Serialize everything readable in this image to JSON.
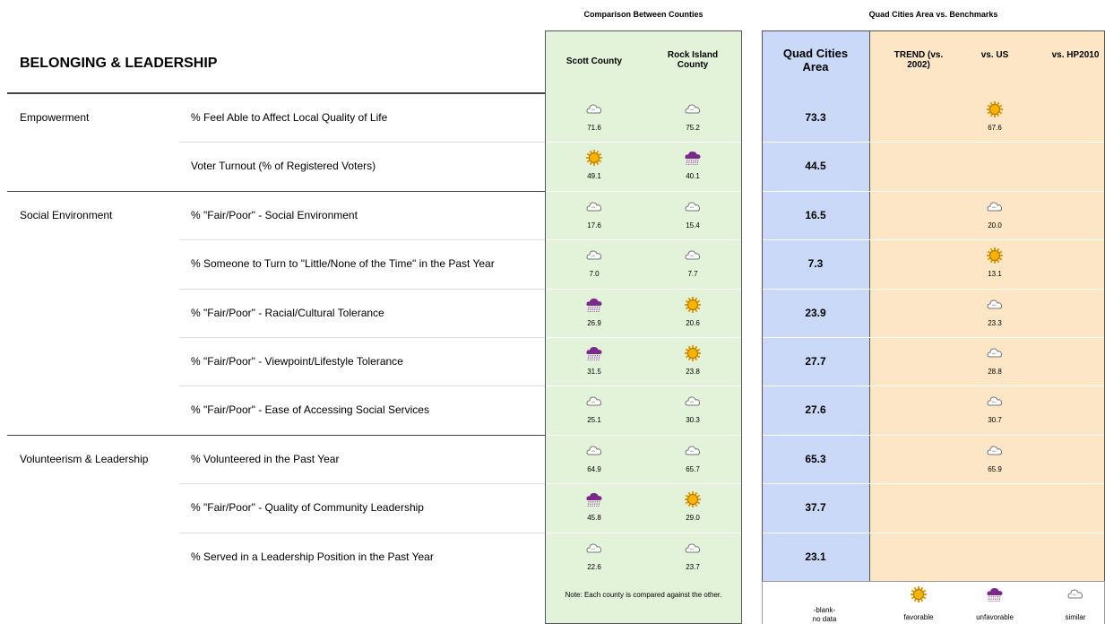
{
  "header": {
    "title": "BELONGING & LEADERSHIP",
    "county_group": "Comparison Between Counties",
    "benchmark_group": "Quad Cities Area vs. Benchmarks",
    "columns": {
      "scott": "Scott County",
      "rock": "Rock Island County",
      "qca": "Quad Cities Area",
      "trend": "TREND (vs. 2002)",
      "us": "vs. US",
      "hp": "vs. HP2010"
    }
  },
  "rows": [
    {
      "group": "Empowerment",
      "label": "% Feel Able to Affect Local Quality of Life",
      "scott": {
        "value": "71.6",
        "icon": "similar"
      },
      "rock": {
        "value": "75.2",
        "icon": "similar"
      },
      "qca": "73.3",
      "us": {
        "value": "67.6",
        "icon": "favorable"
      }
    },
    {
      "group": null,
      "label": "Voter Turnout (% of Registered Voters)",
      "scott": {
        "value": "49.1",
        "icon": "favorable"
      },
      "rock": {
        "value": "40.1",
        "icon": "unfavorable"
      },
      "qca": "44.5",
      "us": null
    },
    {
      "group": "Social Environment",
      "label": "% \"Fair/Poor\" - Social Environment",
      "scott": {
        "value": "17.6",
        "icon": "similar"
      },
      "rock": {
        "value": "15.4",
        "icon": "similar"
      },
      "qca": "16.5",
      "us": {
        "value": "20.0",
        "icon": "similar"
      }
    },
    {
      "group": null,
      "label": "% Someone to Turn to \"Little/None of the Time\" in the Past Year",
      "scott": {
        "value": "7.0",
        "icon": "similar"
      },
      "rock": {
        "value": "7.7",
        "icon": "similar"
      },
      "qca": "7.3",
      "us": {
        "value": "13.1",
        "icon": "favorable"
      }
    },
    {
      "group": null,
      "label": "% \"Fair/Poor\" - Racial/Cultural Tolerance",
      "scott": {
        "value": "26.9",
        "icon": "unfavorable"
      },
      "rock": {
        "value": "20.6",
        "icon": "favorable"
      },
      "qca": "23.9",
      "us": {
        "value": "23.3",
        "icon": "similar"
      }
    },
    {
      "group": null,
      "label": "% \"Fair/Poor\" - Viewpoint/Lifestyle Tolerance",
      "scott": {
        "value": "31.5",
        "icon": "unfavorable"
      },
      "rock": {
        "value": "23.8",
        "icon": "favorable"
      },
      "qca": "27.7",
      "us": {
        "value": "28.8",
        "icon": "similar"
      }
    },
    {
      "group": null,
      "label": "% \"Fair/Poor\" - Ease of Accessing Social Services",
      "scott": {
        "value": "25.1",
        "icon": "similar"
      },
      "rock": {
        "value": "30.3",
        "icon": "similar"
      },
      "qca": "27.6",
      "us": {
        "value": "30.7",
        "icon": "similar"
      }
    },
    {
      "group": "Volunteerism & Leadership",
      "label": "% Volunteered in the Past Year",
      "scott": {
        "value": "64.9",
        "icon": "similar"
      },
      "rock": {
        "value": "65.7",
        "icon": "similar"
      },
      "qca": "65.3",
      "us": {
        "value": "65.9",
        "icon": "similar"
      }
    },
    {
      "group": null,
      "label": "% \"Fair/Poor\" - Quality of Community Leadership",
      "scott": {
        "value": "45.8",
        "icon": "unfavorable"
      },
      "rock": {
        "value": "29.0",
        "icon": "favorable"
      },
      "qca": "37.7",
      "us": null
    },
    {
      "group": null,
      "label": "% Served in a Leadership Position in the Past Year",
      "scott": {
        "value": "22.6",
        "icon": "similar"
      },
      "rock": {
        "value": "23.7",
        "icon": "similar"
      },
      "qca": "23.1",
      "us": null
    }
  ],
  "footer": {
    "note": "Note: Each county is compared against the other.",
    "blank": [
      "-blank-",
      "no data"
    ],
    "legend": {
      "favorable": "favorable",
      "unfavorable": "unfavorable",
      "similar": "similar"
    }
  }
}
